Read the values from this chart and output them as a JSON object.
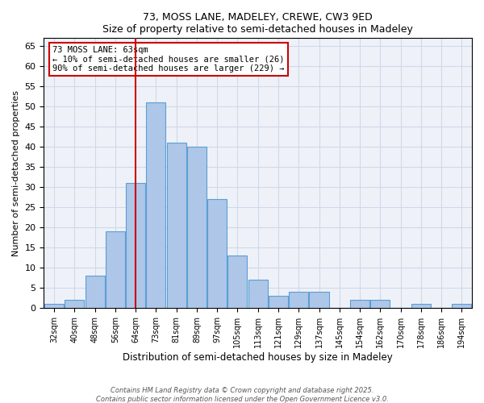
{
  "title1": "73, MOSS LANE, MADELEY, CREWE, CW3 9ED",
  "title2": "Size of property relative to semi-detached houses in Madeley",
  "xlabel": "Distribution of semi-detached houses by size in Madeley",
  "ylabel": "Number of semi-detached properties",
  "bin_labels": [
    "32sqm",
    "40sqm",
    "48sqm",
    "56sqm",
    "64sqm",
    "73sqm",
    "81sqm",
    "89sqm",
    "97sqm",
    "105sqm",
    "113sqm",
    "121sqm",
    "129sqm",
    "137sqm",
    "145sqm",
    "154sqm",
    "162sqm",
    "170sqm",
    "178sqm",
    "186sqm",
    "194sqm"
  ],
  "counts": [
    1,
    2,
    8,
    19,
    31,
    51,
    41,
    40,
    27,
    13,
    7,
    3,
    4,
    4,
    0,
    2,
    2,
    0,
    1,
    0,
    1
  ],
  "bar_color": "#aec6e8",
  "bar_edge_color": "#5a9fd4",
  "vline_bin_index": 4,
  "vline_color": "#cc0000",
  "annotation_text": "73 MOSS LANE: 63sqm\n← 10% of semi-detached houses are smaller (26)\n90% of semi-detached houses are larger (229) →",
  "annotation_box_color": "#cc0000",
  "grid_color": "#d0d8e8",
  "background_color": "#eef2f8",
  "ylim": [
    0,
    67
  ],
  "yticks": [
    0,
    5,
    10,
    15,
    20,
    25,
    30,
    35,
    40,
    45,
    50,
    55,
    60,
    65
  ],
  "footer1": "Contains HM Land Registry data © Crown copyright and database right 2025.",
  "footer2": "Contains public sector information licensed under the Open Government Licence v3.0."
}
